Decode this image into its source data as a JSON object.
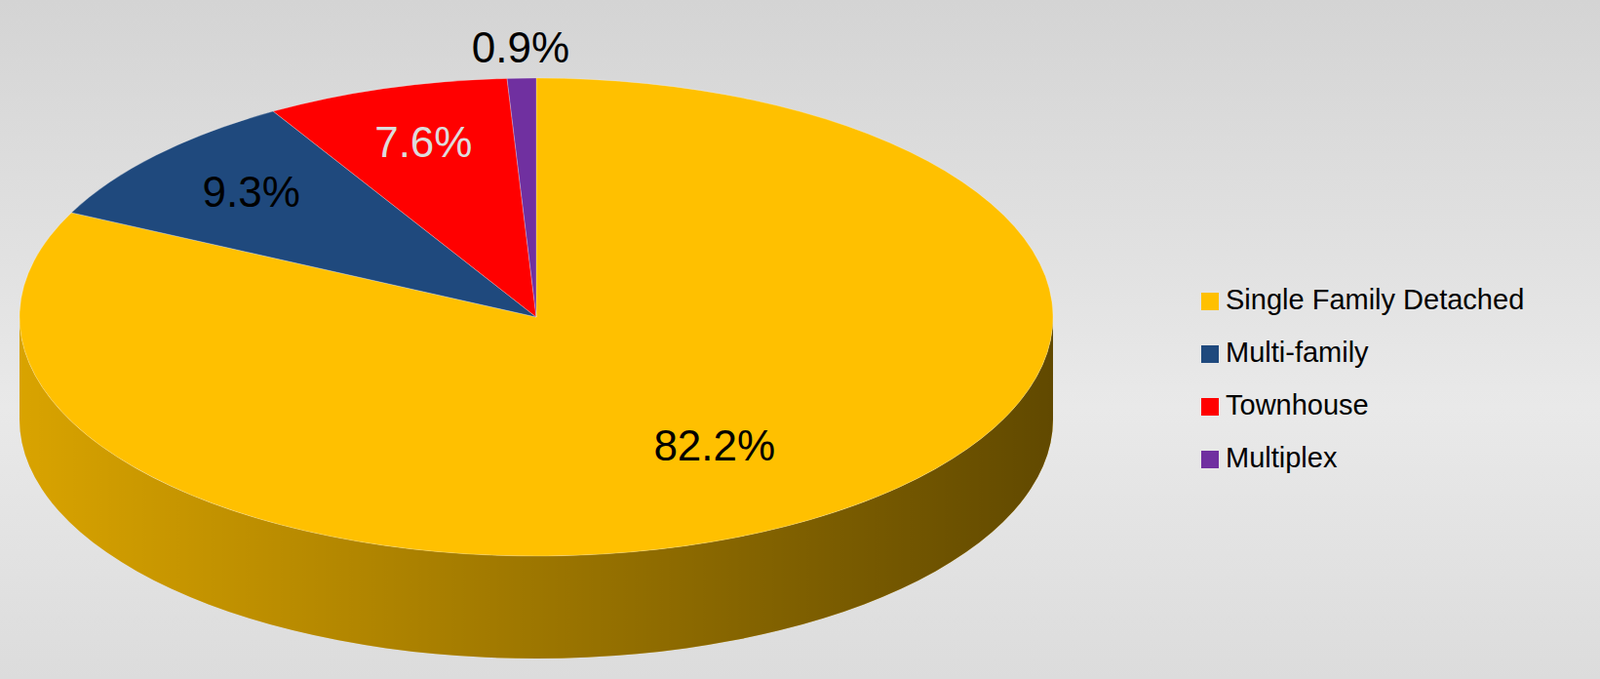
{
  "chart_data": {
    "type": "pie",
    "categories": [
      "Single Family Detached",
      "Multi-family",
      "Townhouse",
      "Multiplex"
    ],
    "values": [
      82.2,
      9.3,
      7.6,
      0.9
    ],
    "value_labels": [
      "82.2%",
      "9.3%",
      "7.6%",
      "0.9%"
    ],
    "colors": [
      "#ffc000",
      "#1f497d",
      "#ff0000",
      "#7030a0"
    ],
    "data_labels": true,
    "legend": "right"
  }
}
